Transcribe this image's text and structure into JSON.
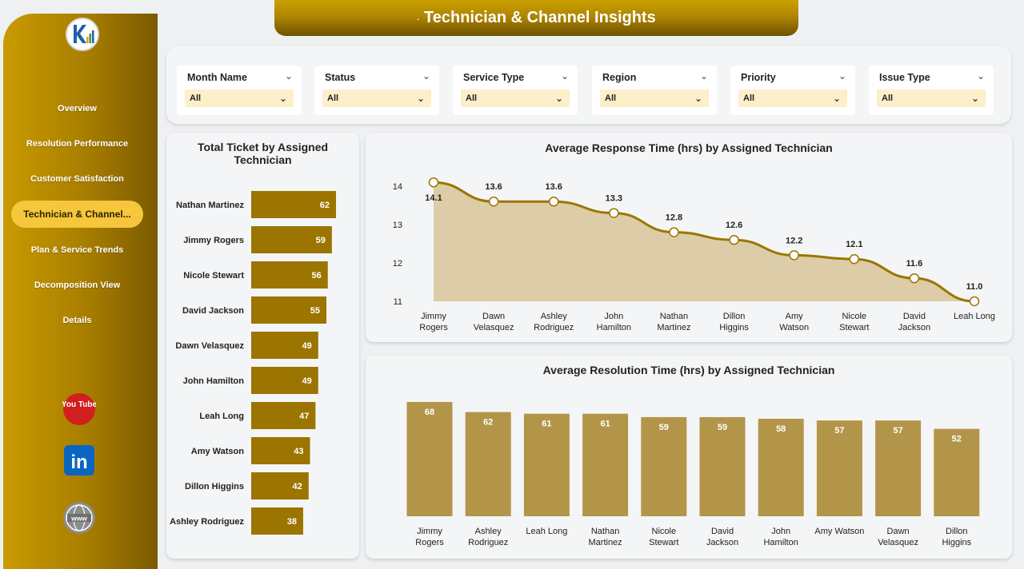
{
  "header": {
    "title_prefix": ".",
    "title": "Technician & Channel Insights"
  },
  "sidebar": {
    "items": [
      {
        "label": "Overview",
        "active": false
      },
      {
        "label": "Resolution Performance",
        "active": false
      },
      {
        "label": "Customer Satisfaction",
        "active": false
      },
      {
        "label": "Technician & Channel...",
        "active": true
      },
      {
        "label": "Plan & Service Trends",
        "active": false
      },
      {
        "label": "Decomposition View",
        "active": false
      },
      {
        "label": "Details",
        "active": false
      }
    ],
    "social": [
      {
        "name": "youtube-icon",
        "label": "You Tube"
      },
      {
        "name": "linkedin-icon",
        "label": "in"
      },
      {
        "name": "globe-icon",
        "label": "www"
      }
    ]
  },
  "filters": [
    {
      "label": "Month Name",
      "value": "All"
    },
    {
      "label": "Status",
      "value": "All"
    },
    {
      "label": "Service Type",
      "value": "All"
    },
    {
      "label": "Region",
      "value": "All"
    },
    {
      "label": "Priority",
      "value": "All"
    },
    {
      "label": "Issue Type",
      "value": "All"
    }
  ],
  "colors": {
    "gold": "#9b7500",
    "gold_light": "#b3954a",
    "area_fill": "#dccda8",
    "accent": "#f6c63c"
  },
  "chart_data": [
    {
      "type": "bar",
      "orientation": "horizontal",
      "title": "Total Ticket by Assigned Technician",
      "categories": [
        "Nathan Martinez",
        "Jimmy Rogers",
        "Nicole Stewart",
        "David Jackson",
        "Dawn Velasquez",
        "John Hamilton",
        "Leah Long",
        "Amy Watson",
        "Dillon Higgins",
        "Ashley Rodriguez"
      ],
      "values": [
        62,
        59,
        56,
        55,
        49,
        49,
        47,
        43,
        42,
        38
      ]
    },
    {
      "type": "area",
      "title": "Average Response Time (hrs) by Assigned Technician",
      "categories": [
        "Jimmy Rogers",
        "Dawn Velasquez",
        "Ashley Rodriguez",
        "John Hamilton",
        "Nathan Martinez",
        "Dillon Higgins",
        "Amy Watson",
        "Nicole Stewart",
        "David Jackson",
        "Leah Long"
      ],
      "values": [
        14.1,
        13.6,
        13.6,
        13.3,
        12.8,
        12.6,
        12.2,
        12.1,
        11.6,
        11.0
      ],
      "yticks": [
        11,
        12,
        13,
        14
      ],
      "ylim": [
        11,
        14.3
      ]
    },
    {
      "type": "bar",
      "orientation": "vertical",
      "title": "Average Resolution Time (hrs) by Assigned Technician",
      "categories": [
        "Jimmy Rogers",
        "Ashley Rodriguez",
        "Leah Long",
        "Nathan Martinez",
        "Nicole Stewart",
        "David Jackson",
        "John Hamilton",
        "Amy Watson",
        "Dawn Velasquez",
        "Dillon Higgins"
      ],
      "values": [
        68,
        62,
        61,
        61,
        59,
        59,
        58,
        57,
        57,
        52
      ],
      "ylim": [
        0,
        68
      ]
    }
  ]
}
